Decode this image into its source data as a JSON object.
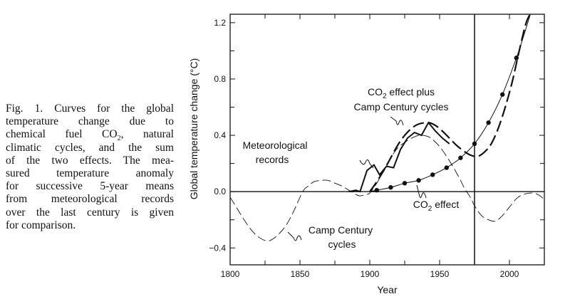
{
  "caption": {
    "lines": [
      "Fig. 1. Curves for the global",
      "temperature change due to",
      "chemical fuel CO",
      "climatic cycles, and the sum",
      "of the two effects. The mea-",
      "sured temperature anomaly",
      "for successive 5-year means",
      "from meteorological records",
      "over the last century is given",
      "for comparison."
    ],
    "co2_sub": "2",
    "co2_after": ", natural"
  },
  "chart_data": {
    "type": "line",
    "title": "",
    "xlabel": "Year",
    "ylabel": "Global temperature change (°C)",
    "xlim": [
      1800,
      2025
    ],
    "ylim": [
      -0.52,
      1.26
    ],
    "xticks": [
      1800,
      1850,
      1900,
      1950,
      2000
    ],
    "yticks": [
      "-0.4",
      "0.0",
      "0.4",
      "0.8",
      "1.2"
    ],
    "minor_yticks": [
      -0.2,
      0.2,
      0.6,
      1.0
    ],
    "minor_xticks": [
      1825,
      1875,
      1925,
      1975
    ],
    "reference_lines": {
      "y": 0.0,
      "x": 1975
    },
    "grid": false,
    "series": [
      {
        "name": "Camp Century cycles",
        "style": "thin-dashed",
        "x": [
          1800,
          1805,
          1810,
          1815,
          1820,
          1826,
          1830,
          1835,
          1840,
          1845,
          1852,
          1856,
          1860,
          1865,
          1870,
          1875,
          1880,
          1885,
          1890,
          1893,
          1897,
          1900,
          1905,
          1910,
          1915,
          1920,
          1925,
          1930,
          1935,
          1938,
          1942,
          1945,
          1950,
          1955,
          1960,
          1965,
          1968,
          1972,
          1975,
          1980,
          1985,
          1990,
          1995,
          2000,
          2005,
          2010,
          2017,
          2022,
          2025
        ],
        "y": [
          -0.04,
          -0.12,
          -0.2,
          -0.27,
          -0.32,
          -0.35,
          -0.34,
          -0.3,
          -0.24,
          -0.15,
          0.0,
          0.04,
          0.07,
          0.08,
          0.08,
          0.06,
          0.04,
          0.01,
          -0.02,
          -0.03,
          -0.02,
          -0.01,
          0.06,
          0.15,
          0.24,
          0.31,
          0.35,
          0.38,
          0.4,
          0.4,
          0.39,
          0.37,
          0.32,
          0.25,
          0.17,
          0.08,
          0.02,
          -0.04,
          -0.1,
          -0.17,
          -0.2,
          -0.21,
          -0.17,
          -0.11,
          -0.05,
          -0.02,
          -0.01,
          -0.03,
          -0.06
        ]
      },
      {
        "name": "Meteorological records",
        "style": "solid-thick",
        "x": [
          1885,
          1890,
          1893,
          1898,
          1903,
          1907,
          1912,
          1917,
          1922,
          1927,
          1932,
          1937,
          1942,
          1947,
          1952,
          1957
        ],
        "y": [
          0.0,
          0.01,
          0.0,
          0.15,
          0.19,
          0.12,
          0.18,
          0.17,
          0.3,
          0.38,
          0.42,
          0.4,
          0.49,
          0.43,
          0.38,
          0.34
        ]
      },
      {
        "name": "CO2 effect",
        "style": "solid-with-dots",
        "x": [
          1900,
          1905,
          1915,
          1925,
          1935,
          1945,
          1955,
          1965,
          1975,
          1985,
          1995,
          2005,
          2010,
          2015
        ],
        "y": [
          0.0,
          0.01,
          0.03,
          0.06,
          0.08,
          0.12,
          0.17,
          0.24,
          0.34,
          0.49,
          0.69,
          0.95,
          1.1,
          1.26
        ],
        "markers_x": [
          1905,
          1915,
          1925,
          1935,
          1945,
          1955,
          1965,
          1975,
          1985,
          1995,
          2005
        ]
      },
      {
        "name": "CO2 effect plus Camp Century cycles",
        "style": "thick-dashed",
        "x": [
          1900,
          1905,
          1910,
          1915,
          1920,
          1925,
          1930,
          1935,
          1942,
          1947,
          1952,
          1957,
          1962,
          1967,
          1972,
          1977,
          1982,
          1987,
          1992,
          1997,
          2002,
          2007,
          2012,
          2016
        ],
        "y": [
          0.0,
          0.07,
          0.15,
          0.24,
          0.33,
          0.4,
          0.45,
          0.48,
          0.49,
          0.47,
          0.43,
          0.38,
          0.33,
          0.29,
          0.26,
          0.25,
          0.28,
          0.34,
          0.45,
          0.6,
          0.78,
          1.0,
          1.2,
          1.28
        ]
      }
    ],
    "annotations": [
      {
        "text": "CO",
        "sub": "2",
        "after": " effect plus",
        "line2": "Camp Century cycles"
      },
      {
        "text": "Meteorological",
        "line2": "records"
      },
      {
        "text": "CO",
        "sub": "2",
        "after": " effect"
      },
      {
        "text": "Camp Century",
        "line2": "cycles"
      }
    ]
  }
}
